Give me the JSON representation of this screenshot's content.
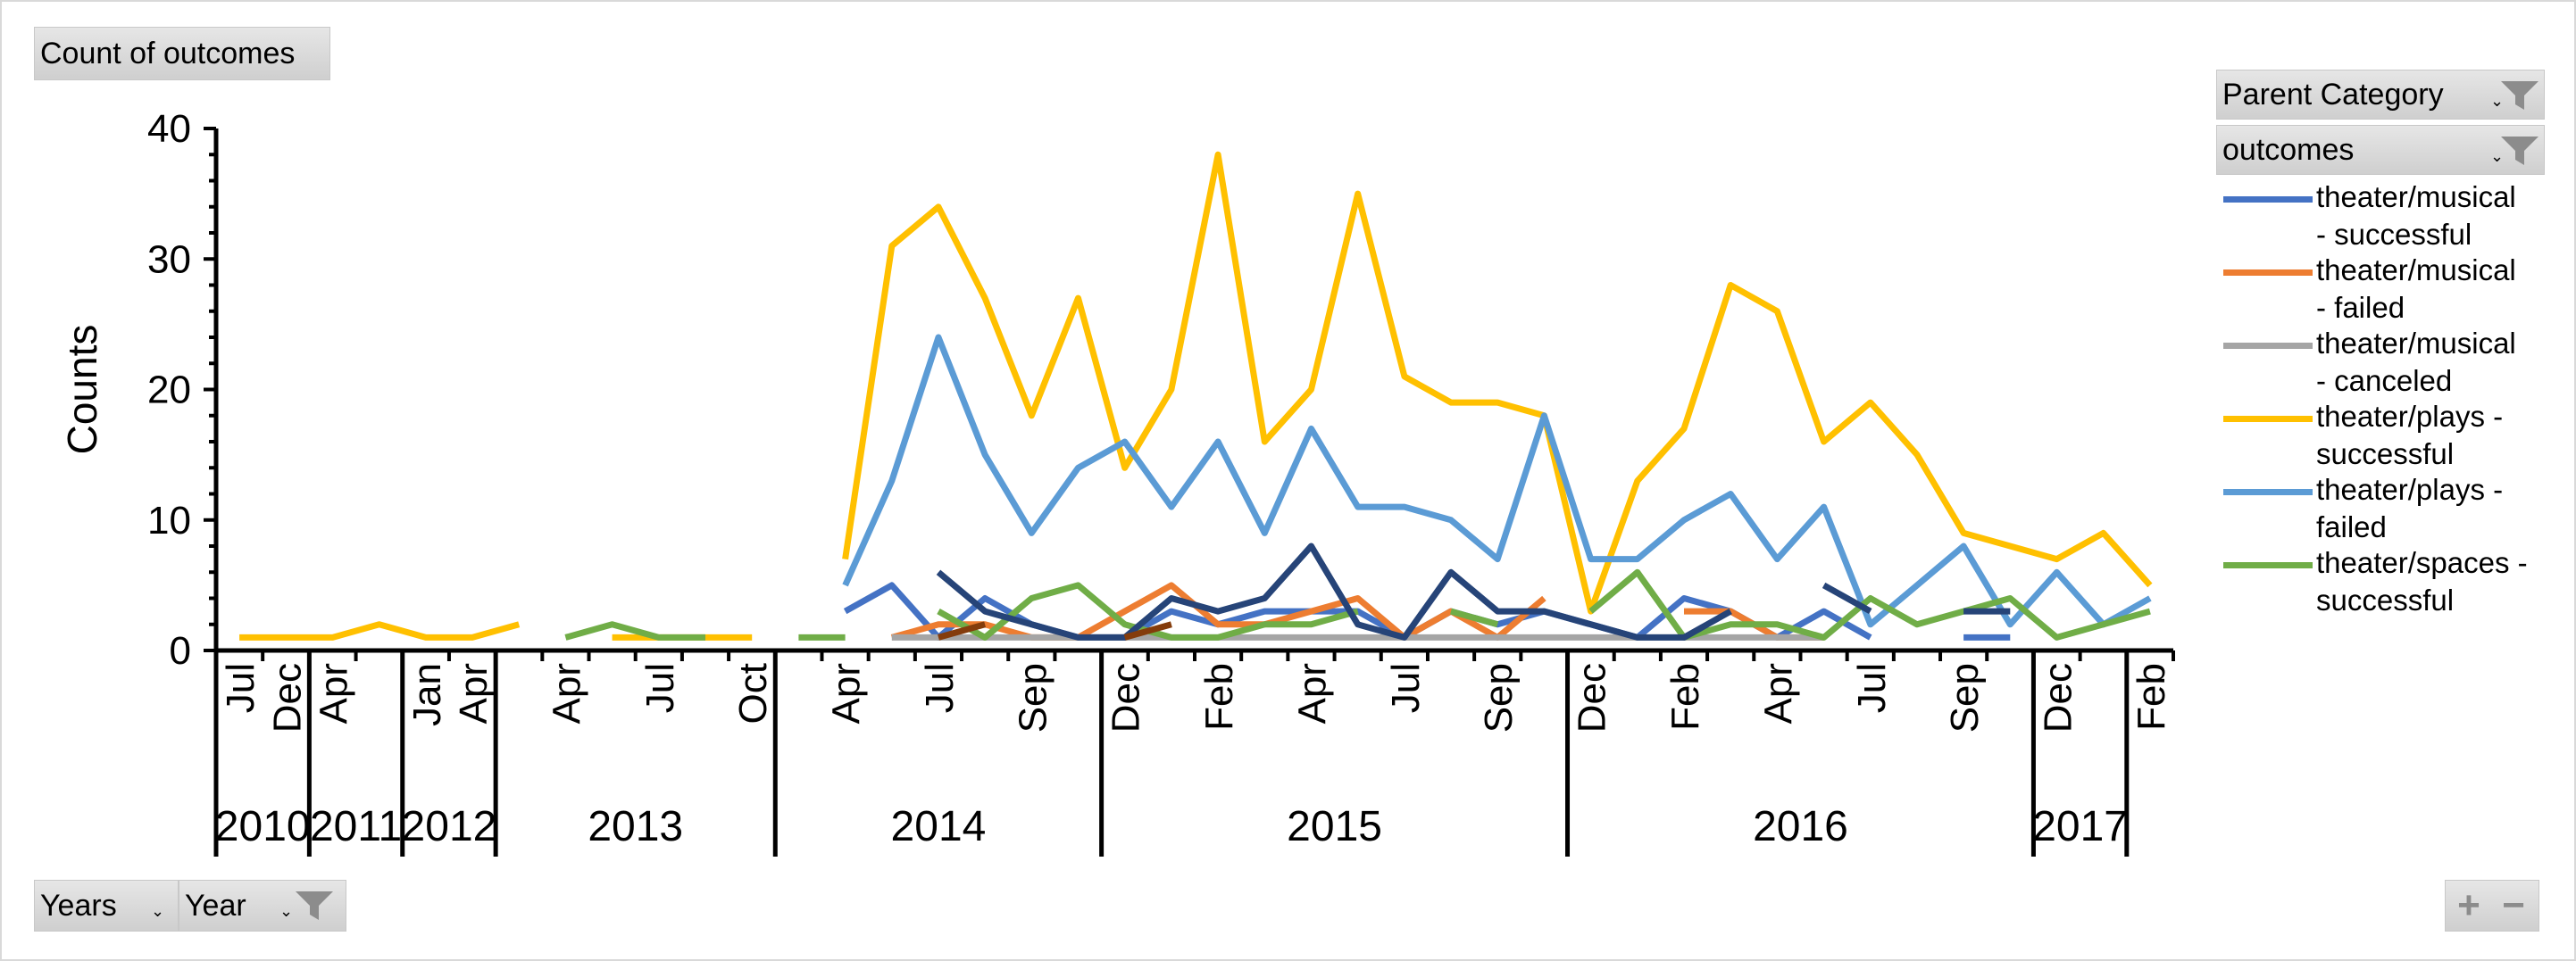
{
  "value_button": "Count of outcomes",
  "filters": {
    "parent_category": "Parent Category",
    "outcomes": "outcomes"
  },
  "axis_buttons": {
    "years": "Years",
    "year": "Year"
  },
  "chart_data": {
    "type": "line",
    "title": "",
    "ylabel": "Counts",
    "ylim": [
      0,
      40
    ],
    "yticks": [
      0,
      10,
      20,
      30,
      40
    ],
    "grid": false,
    "legend_placement": "right",
    "year_groups": [
      {
        "label": "2010",
        "span": 2
      },
      {
        "label": "2011",
        "span": 2
      },
      {
        "label": "2012",
        "span": 2
      },
      {
        "label": "2013",
        "span": 6
      },
      {
        "label": "2014",
        "span": 7
      },
      {
        "label": "2015",
        "span": 10
      },
      {
        "label": "2016",
        "span": 10
      },
      {
        "label": "2017",
        "span": 2
      }
    ],
    "categories": [
      "Jul",
      "Dec",
      "Apr",
      "",
      "Jan",
      "Apr",
      "",
      "Apr",
      "",
      "Jul",
      "",
      "Oct",
      "",
      "Apr",
      "",
      "Jul",
      "",
      "Sep",
      "",
      "Dec",
      "",
      "Feb",
      "",
      "Apr",
      "",
      "Jul",
      "",
      "Sep",
      "",
      "Dec",
      "",
      "Feb",
      "",
      "Apr",
      "",
      "Jul",
      "",
      "Sep",
      "",
      "Dec",
      "",
      "Feb"
    ],
    "tick_labels": [
      {
        "x": 1,
        "label": "Jul"
      },
      {
        "x": 2,
        "label": "Dec"
      },
      {
        "x": 3,
        "label": "Apr"
      },
      {
        "x": 5,
        "label": "Jan"
      },
      {
        "x": 6,
        "label": "Apr"
      },
      {
        "x": 8,
        "label": "Apr"
      },
      {
        "x": 10,
        "label": "Jul"
      },
      {
        "x": 12,
        "label": "Oct"
      },
      {
        "x": 14,
        "label": "Apr"
      },
      {
        "x": 16,
        "label": "Jul"
      },
      {
        "x": 18,
        "label": "Sep"
      },
      {
        "x": 20,
        "label": "Dec"
      },
      {
        "x": 22,
        "label": "Feb"
      },
      {
        "x": 24,
        "label": "Apr"
      },
      {
        "x": 26,
        "label": "Jul"
      },
      {
        "x": 28,
        "label": "Sep"
      },
      {
        "x": 30,
        "label": "Dec"
      },
      {
        "x": 32,
        "label": "Feb"
      },
      {
        "x": 34,
        "label": "Apr"
      },
      {
        "x": 36,
        "label": "Jul"
      },
      {
        "x": 38,
        "label": "Sep"
      },
      {
        "x": 40,
        "label": "Dec"
      },
      {
        "x": 42,
        "label": "Feb"
      }
    ],
    "series": [
      {
        "name": "theater/musical - successful",
        "color": "#4472c4",
        "points": [
          [
            14,
            3
          ],
          [
            15,
            5
          ],
          [
            16,
            1
          ],
          [
            17,
            4
          ],
          [
            18,
            2
          ],
          [
            19,
            1
          ],
          [
            20,
            1
          ],
          [
            21,
            3
          ],
          [
            22,
            2
          ],
          [
            23,
            3
          ],
          [
            24,
            3
          ],
          [
            25,
            3
          ],
          [
            26,
            1
          ],
          [
            27,
            3
          ],
          [
            28,
            2
          ],
          [
            29,
            3
          ],
          [
            30,
            2
          ],
          [
            31,
            1
          ],
          [
            32,
            4
          ],
          [
            33,
            3
          ],
          [
            34,
            1
          ],
          [
            35,
            3
          ],
          [
            36,
            1
          ],
          [
            37,
            null
          ],
          [
            38,
            1
          ],
          [
            39,
            1
          ]
        ]
      },
      {
        "name": "theater/musical - failed",
        "color": "#ed7d31",
        "points": [
          [
            15,
            1
          ],
          [
            16,
            2
          ],
          [
            17,
            2
          ],
          [
            18,
            1
          ],
          [
            19,
            1
          ],
          [
            20,
            3
          ],
          [
            21,
            5
          ],
          [
            22,
            2
          ],
          [
            23,
            2
          ],
          [
            24,
            3
          ],
          [
            25,
            4
          ],
          [
            26,
            1
          ],
          [
            27,
            3
          ],
          [
            28,
            1
          ],
          [
            29,
            4
          ],
          [
            30,
            null
          ],
          [
            31,
            null
          ],
          [
            32,
            3
          ],
          [
            33,
            3
          ],
          [
            34,
            1
          ],
          [
            35,
            1
          ]
        ]
      },
      {
        "name": "theater/musical - canceled",
        "color": "#a5a5a5",
        "points": [
          [
            15,
            1
          ],
          [
            16,
            1
          ],
          [
            17,
            1
          ],
          [
            18,
            1
          ],
          [
            32,
            1
          ],
          [
            33,
            1
          ],
          [
            34,
            1
          ],
          [
            35,
            1
          ]
        ]
      },
      {
        "name": "theater/plays - successful",
        "color": "#ffc000",
        "points": [
          [
            1,
            1
          ],
          [
            2,
            1
          ],
          [
            3,
            1
          ],
          [
            4,
            2
          ],
          [
            5,
            1
          ],
          [
            6,
            1
          ],
          [
            7,
            2
          ],
          [
            8,
            null
          ],
          [
            9,
            1
          ],
          [
            10,
            1
          ],
          [
            11,
            1
          ],
          [
            12,
            1
          ],
          [
            13,
            null
          ],
          [
            14,
            7
          ],
          [
            15,
            31
          ],
          [
            16,
            34
          ],
          [
            17,
            27
          ],
          [
            18,
            18
          ],
          [
            19,
            27
          ],
          [
            20,
            14
          ],
          [
            21,
            20
          ],
          [
            22,
            38
          ],
          [
            23,
            16
          ],
          [
            24,
            20
          ],
          [
            25,
            35
          ],
          [
            26,
            21
          ],
          [
            27,
            19
          ],
          [
            28,
            19
          ],
          [
            29,
            18
          ],
          [
            30,
            3
          ],
          [
            31,
            13
          ],
          [
            32,
            17
          ],
          [
            33,
            28
          ],
          [
            34,
            26
          ],
          [
            35,
            16
          ],
          [
            36,
            19
          ],
          [
            37,
            15
          ],
          [
            38,
            9
          ],
          [
            39,
            8
          ],
          [
            40,
            7
          ],
          [
            41,
            9
          ],
          [
            42,
            5
          ]
        ]
      },
      {
        "name": "theater/plays - failed",
        "color": "#5b9bd5",
        "points": [
          [
            14,
            5
          ],
          [
            15,
            13
          ],
          [
            16,
            24
          ],
          [
            17,
            15
          ],
          [
            18,
            9
          ],
          [
            19,
            14
          ],
          [
            20,
            16
          ],
          [
            21,
            11
          ],
          [
            22,
            16
          ],
          [
            23,
            9
          ],
          [
            24,
            17
          ],
          [
            25,
            11
          ],
          [
            26,
            11
          ],
          [
            27,
            10
          ],
          [
            28,
            7
          ],
          [
            29,
            18
          ],
          [
            30,
            7
          ],
          [
            31,
            7
          ],
          [
            32,
            10
          ],
          [
            33,
            12
          ],
          [
            34,
            7
          ],
          [
            35,
            11
          ],
          [
            36,
            2
          ],
          [
            37,
            5
          ],
          [
            38,
            8
          ],
          [
            39,
            2
          ],
          [
            40,
            6
          ],
          [
            41,
            2
          ],
          [
            42,
            4
          ]
        ]
      },
      {
        "name": "theater/spaces - successful",
        "color": "#70ad47",
        "points": [
          [
            8,
            1
          ],
          [
            9,
            2
          ],
          [
            10,
            1
          ],
          [
            11,
            1
          ],
          [
            12,
            null
          ],
          [
            13,
            1
          ],
          [
            14,
            1
          ],
          [
            15,
            null
          ],
          [
            16,
            3
          ],
          [
            17,
            1
          ],
          [
            18,
            4
          ],
          [
            19,
            5
          ],
          [
            20,
            2
          ],
          [
            21,
            1
          ],
          [
            22,
            1
          ],
          [
            23,
            2
          ],
          [
            24,
            2
          ],
          [
            25,
            3
          ],
          [
            26,
            null
          ],
          [
            27,
            3
          ],
          [
            28,
            2
          ],
          [
            29,
            null
          ],
          [
            30,
            3
          ],
          [
            31,
            6
          ],
          [
            32,
            1
          ],
          [
            33,
            2
          ],
          [
            34,
            2
          ],
          [
            35,
            1
          ],
          [
            36,
            4
          ],
          [
            37,
            2
          ],
          [
            38,
            3
          ],
          [
            39,
            4
          ],
          [
            40,
            1
          ],
          [
            41,
            2
          ],
          [
            42,
            3
          ]
        ]
      },
      {
        "color": "#264478",
        "points": [
          [
            16,
            6
          ],
          [
            17,
            3
          ],
          [
            18,
            2
          ],
          [
            19,
            1
          ],
          [
            20,
            1
          ],
          [
            21,
            4
          ],
          [
            22,
            3
          ],
          [
            23,
            4
          ],
          [
            24,
            8
          ],
          [
            25,
            2
          ],
          [
            26,
            1
          ],
          [
            27,
            6
          ],
          [
            28,
            3
          ],
          [
            29,
            3
          ],
          [
            30,
            2
          ],
          [
            31,
            1
          ],
          [
            32,
            1
          ],
          [
            33,
            3
          ],
          [
            34,
            null
          ],
          [
            35,
            5
          ],
          [
            36,
            3
          ],
          [
            37,
            null
          ],
          [
            38,
            3
          ],
          [
            39,
            3
          ]
        ]
      },
      {
        "color": "#843c0c",
        "points": [
          [
            16,
            1
          ],
          [
            17,
            2
          ],
          [
            18,
            null
          ],
          [
            19,
            null
          ],
          [
            20,
            1
          ],
          [
            21,
            2
          ]
        ]
      }
    ]
  }
}
